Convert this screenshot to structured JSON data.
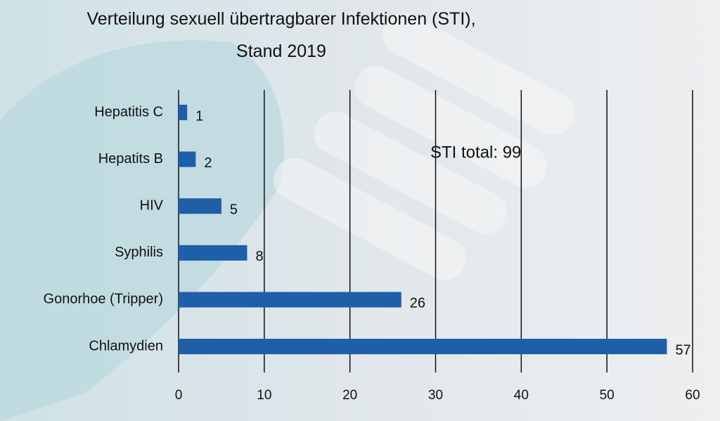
{
  "chart_data": {
    "type": "barh",
    "title": "Verteilung sexuell übertragbarer Infektionen (STI), Stand 2019",
    "categories": [
      "Hepatitis C",
      "Hepatits B",
      "HIV",
      "Syphilis",
      "Gonorhoe (Tripper)",
      "Chlamydien"
    ],
    "values": [
      1,
      2,
      5,
      8,
      26,
      57
    ],
    "color": "#1f5fa8",
    "xlim": [
      0,
      60
    ],
    "xticks": [
      0,
      10,
      20,
      30,
      40,
      50,
      60
    ],
    "grid": true,
    "annotation": "STI total: 99"
  }
}
